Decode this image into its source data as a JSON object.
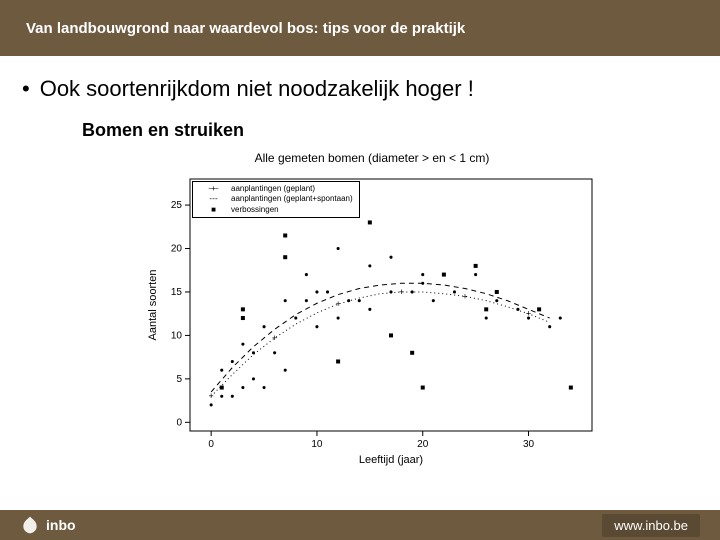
{
  "header": {
    "title": "Van landbouwgrond naar waardevol bos: tips voor de praktijk"
  },
  "bullet": {
    "text": "Ook soortenrijkdom niet noodzakelijk hoger !"
  },
  "subtitle": "Bomen en struiken",
  "chart": {
    "type": "scatter-with-spline",
    "title": "Alle gemeten bomen (diameter > en < 1 cm)",
    "xlabel": "Leeftijd (jaar)",
    "ylabel": "Aantal soorten",
    "xlim": [
      -2,
      36
    ],
    "ylim": [
      -1,
      28
    ],
    "xticks": [
      0,
      10,
      20,
      30
    ],
    "yticks": [
      0,
      5,
      10,
      15,
      20,
      25
    ],
    "background_color": "#ffffff",
    "axis_color": "#000000",
    "label_fontsize": 11,
    "tick_fontsize": 10,
    "legend": {
      "items": [
        {
          "symbol": "line-plus",
          "label": "aanplantingen (geplant)"
        },
        {
          "symbol": "line-dash",
          "label": "aanplantingen (geplant+spontaan)"
        },
        {
          "symbol": "square-solid",
          "label": "verbossingen"
        }
      ],
      "fontsize": 8
    },
    "series": {
      "planted_line": {
        "color": "#000000",
        "width": 1,
        "style": "dotted-plus",
        "points": [
          [
            0,
            3
          ],
          [
            2,
            5.5
          ],
          [
            4,
            7.8
          ],
          [
            6,
            9.7
          ],
          [
            8,
            11.3
          ],
          [
            10,
            12.6
          ],
          [
            12,
            13.6
          ],
          [
            14,
            14.3
          ],
          [
            16,
            14.8
          ],
          [
            18,
            15
          ],
          [
            20,
            15
          ],
          [
            22,
            14.8
          ],
          [
            24,
            14.5
          ],
          [
            26,
            14
          ],
          [
            28,
            13.3
          ],
          [
            30,
            12.5
          ],
          [
            32,
            11.5
          ]
        ]
      },
      "planted_spont_line": {
        "color": "#000000",
        "width": 1,
        "style": "dashed",
        "points": [
          [
            0,
            3.5
          ],
          [
            2,
            6.3
          ],
          [
            4,
            8.7
          ],
          [
            6,
            10.7
          ],
          [
            8,
            12.4
          ],
          [
            10,
            13.7
          ],
          [
            12,
            14.7
          ],
          [
            14,
            15.4
          ],
          [
            16,
            15.8
          ],
          [
            18,
            16
          ],
          [
            20,
            16
          ],
          [
            22,
            15.8
          ],
          [
            24,
            15.4
          ],
          [
            26,
            14.8
          ],
          [
            28,
            14
          ],
          [
            30,
            13
          ],
          [
            32,
            12
          ]
        ]
      },
      "natural_squares": {
        "color": "#000000",
        "marker": "square",
        "size": 4,
        "points": [
          [
            1,
            4
          ],
          [
            3,
            12
          ],
          [
            3,
            13
          ],
          [
            7,
            19
          ],
          [
            7,
            21.5
          ],
          [
            12,
            7
          ],
          [
            15,
            23
          ],
          [
            17,
            10
          ],
          [
            19,
            8
          ],
          [
            20,
            4
          ],
          [
            22,
            17
          ],
          [
            25,
            18
          ],
          [
            26,
            13
          ],
          [
            27,
            15
          ],
          [
            31,
            13
          ],
          [
            34,
            4
          ]
        ]
      },
      "scatter_dots": {
        "color": "#000000",
        "marker": "dot",
        "size": 2,
        "points": [
          [
            0,
            2
          ],
          [
            1,
            3
          ],
          [
            1,
            6
          ],
          [
            2,
            3
          ],
          [
            2,
            7
          ],
          [
            3,
            4
          ],
          [
            3,
            9
          ],
          [
            4,
            5
          ],
          [
            4,
            8
          ],
          [
            5,
            4
          ],
          [
            5,
            11
          ],
          [
            6,
            8
          ],
          [
            7,
            6
          ],
          [
            7,
            14
          ],
          [
            8,
            12
          ],
          [
            9,
            14
          ],
          [
            9,
            17
          ],
          [
            10,
            11
          ],
          [
            10,
            15
          ],
          [
            11,
            15
          ],
          [
            12,
            12
          ],
          [
            12,
            20
          ],
          [
            13,
            14
          ],
          [
            14,
            14
          ],
          [
            15,
            13
          ],
          [
            15,
            18
          ],
          [
            17,
            15
          ],
          [
            17,
            19
          ],
          [
            19,
            15
          ],
          [
            20,
            16
          ],
          [
            20,
            17
          ],
          [
            21,
            14
          ],
          [
            23,
            15
          ],
          [
            25,
            17
          ],
          [
            26,
            12
          ],
          [
            27,
            14
          ],
          [
            29,
            13
          ],
          [
            30,
            12
          ],
          [
            32,
            11
          ],
          [
            33,
            12
          ]
        ]
      }
    }
  },
  "footer": {
    "brand": "inbo",
    "url": "www.inbo.be"
  },
  "colors": {
    "header_bg": "#6d5a3f",
    "footer_bg": "#6d5a3f",
    "text_light": "#ffffff"
  }
}
